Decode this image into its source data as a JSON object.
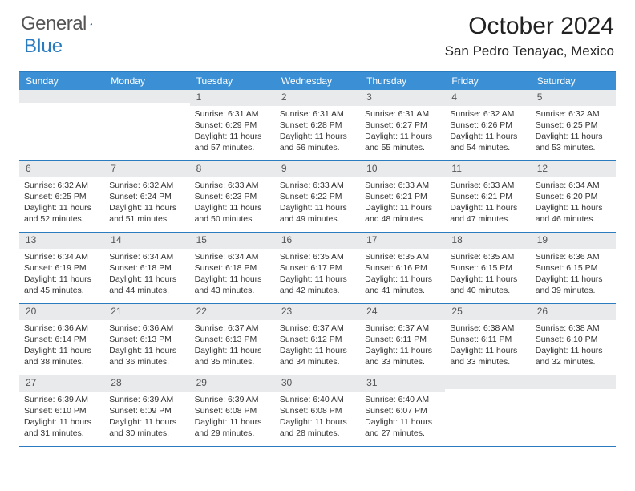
{
  "brand": {
    "part1": "General",
    "part2": "Blue"
  },
  "title": "October 2024",
  "location": "San Pedro Tenayac, Mexico",
  "colors": {
    "header_bg": "#3b8fd4",
    "border": "#2b7bbf",
    "daynum_bg": "#e8eaec",
    "text": "#222222"
  },
  "dow": [
    "Sunday",
    "Monday",
    "Tuesday",
    "Wednesday",
    "Thursday",
    "Friday",
    "Saturday"
  ],
  "weeks": [
    [
      null,
      null,
      {
        "n": "1",
        "sr": "6:31 AM",
        "ss": "6:29 PM",
        "dl": "11 hours and 57 minutes."
      },
      {
        "n": "2",
        "sr": "6:31 AM",
        "ss": "6:28 PM",
        "dl": "11 hours and 56 minutes."
      },
      {
        "n": "3",
        "sr": "6:31 AM",
        "ss": "6:27 PM",
        "dl": "11 hours and 55 minutes."
      },
      {
        "n": "4",
        "sr": "6:32 AM",
        "ss": "6:26 PM",
        "dl": "11 hours and 54 minutes."
      },
      {
        "n": "5",
        "sr": "6:32 AM",
        "ss": "6:25 PM",
        "dl": "11 hours and 53 minutes."
      }
    ],
    [
      {
        "n": "6",
        "sr": "6:32 AM",
        "ss": "6:25 PM",
        "dl": "11 hours and 52 minutes."
      },
      {
        "n": "7",
        "sr": "6:32 AM",
        "ss": "6:24 PM",
        "dl": "11 hours and 51 minutes."
      },
      {
        "n": "8",
        "sr": "6:33 AM",
        "ss": "6:23 PM",
        "dl": "11 hours and 50 minutes."
      },
      {
        "n": "9",
        "sr": "6:33 AM",
        "ss": "6:22 PM",
        "dl": "11 hours and 49 minutes."
      },
      {
        "n": "10",
        "sr": "6:33 AM",
        "ss": "6:21 PM",
        "dl": "11 hours and 48 minutes."
      },
      {
        "n": "11",
        "sr": "6:33 AM",
        "ss": "6:21 PM",
        "dl": "11 hours and 47 minutes."
      },
      {
        "n": "12",
        "sr": "6:34 AM",
        "ss": "6:20 PM",
        "dl": "11 hours and 46 minutes."
      }
    ],
    [
      {
        "n": "13",
        "sr": "6:34 AM",
        "ss": "6:19 PM",
        "dl": "11 hours and 45 minutes."
      },
      {
        "n": "14",
        "sr": "6:34 AM",
        "ss": "6:18 PM",
        "dl": "11 hours and 44 minutes."
      },
      {
        "n": "15",
        "sr": "6:34 AM",
        "ss": "6:18 PM",
        "dl": "11 hours and 43 minutes."
      },
      {
        "n": "16",
        "sr": "6:35 AM",
        "ss": "6:17 PM",
        "dl": "11 hours and 42 minutes."
      },
      {
        "n": "17",
        "sr": "6:35 AM",
        "ss": "6:16 PM",
        "dl": "11 hours and 41 minutes."
      },
      {
        "n": "18",
        "sr": "6:35 AM",
        "ss": "6:15 PM",
        "dl": "11 hours and 40 minutes."
      },
      {
        "n": "19",
        "sr": "6:36 AM",
        "ss": "6:15 PM",
        "dl": "11 hours and 39 minutes."
      }
    ],
    [
      {
        "n": "20",
        "sr": "6:36 AM",
        "ss": "6:14 PM",
        "dl": "11 hours and 38 minutes."
      },
      {
        "n": "21",
        "sr": "6:36 AM",
        "ss": "6:13 PM",
        "dl": "11 hours and 36 minutes."
      },
      {
        "n": "22",
        "sr": "6:37 AM",
        "ss": "6:13 PM",
        "dl": "11 hours and 35 minutes."
      },
      {
        "n": "23",
        "sr": "6:37 AM",
        "ss": "6:12 PM",
        "dl": "11 hours and 34 minutes."
      },
      {
        "n": "24",
        "sr": "6:37 AM",
        "ss": "6:11 PM",
        "dl": "11 hours and 33 minutes."
      },
      {
        "n": "25",
        "sr": "6:38 AM",
        "ss": "6:11 PM",
        "dl": "11 hours and 33 minutes."
      },
      {
        "n": "26",
        "sr": "6:38 AM",
        "ss": "6:10 PM",
        "dl": "11 hours and 32 minutes."
      }
    ],
    [
      {
        "n": "27",
        "sr": "6:39 AM",
        "ss": "6:10 PM",
        "dl": "11 hours and 31 minutes."
      },
      {
        "n": "28",
        "sr": "6:39 AM",
        "ss": "6:09 PM",
        "dl": "11 hours and 30 minutes."
      },
      {
        "n": "29",
        "sr": "6:39 AM",
        "ss": "6:08 PM",
        "dl": "11 hours and 29 minutes."
      },
      {
        "n": "30",
        "sr": "6:40 AM",
        "ss": "6:08 PM",
        "dl": "11 hours and 28 minutes."
      },
      {
        "n": "31",
        "sr": "6:40 AM",
        "ss": "6:07 PM",
        "dl": "11 hours and 27 minutes."
      },
      null,
      null
    ]
  ],
  "labels": {
    "sunrise": "Sunrise:",
    "sunset": "Sunset:",
    "daylight": "Daylight:"
  }
}
